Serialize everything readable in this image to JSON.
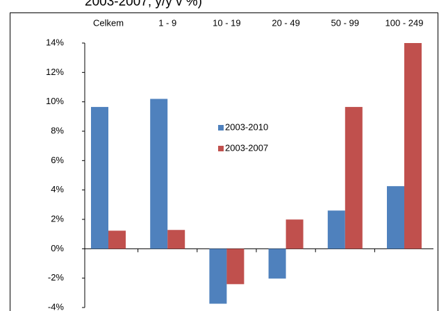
{
  "chart_data": {
    "type": "bar",
    "title": "2003-2007; y/y v %)",
    "categories": [
      "Celkem",
      "1 - 9",
      "10 - 19",
      "20 - 49",
      "50 - 99",
      "100 - 249"
    ],
    "series": [
      {
        "name": "2003-2010",
        "color": "#4f81bd",
        "values": [
          9.65,
          10.2,
          -3.74,
          -2.03,
          2.6,
          4.26
        ]
      },
      {
        "name": "2003-2007",
        "color": "#c0504d",
        "values": [
          1.23,
          1.28,
          -2.41,
          1.99,
          9.65,
          14.0
        ]
      }
    ],
    "ylim": [
      -4,
      14
    ],
    "yticks": [
      {
        "value": -4,
        "label": "-4%"
      },
      {
        "value": -2,
        "label": "-2%"
      },
      {
        "value": 0,
        "label": "0%"
      },
      {
        "value": 2,
        "label": "2%"
      },
      {
        "value": 4,
        "label": "4%"
      },
      {
        "value": 6,
        "label": "6%"
      },
      {
        "value": 8,
        "label": "8%"
      },
      {
        "value": 10,
        "label": "10%"
      },
      {
        "value": 12,
        "label": "12%"
      },
      {
        "value": 14,
        "label": "14%"
      }
    ],
    "grid": false
  }
}
